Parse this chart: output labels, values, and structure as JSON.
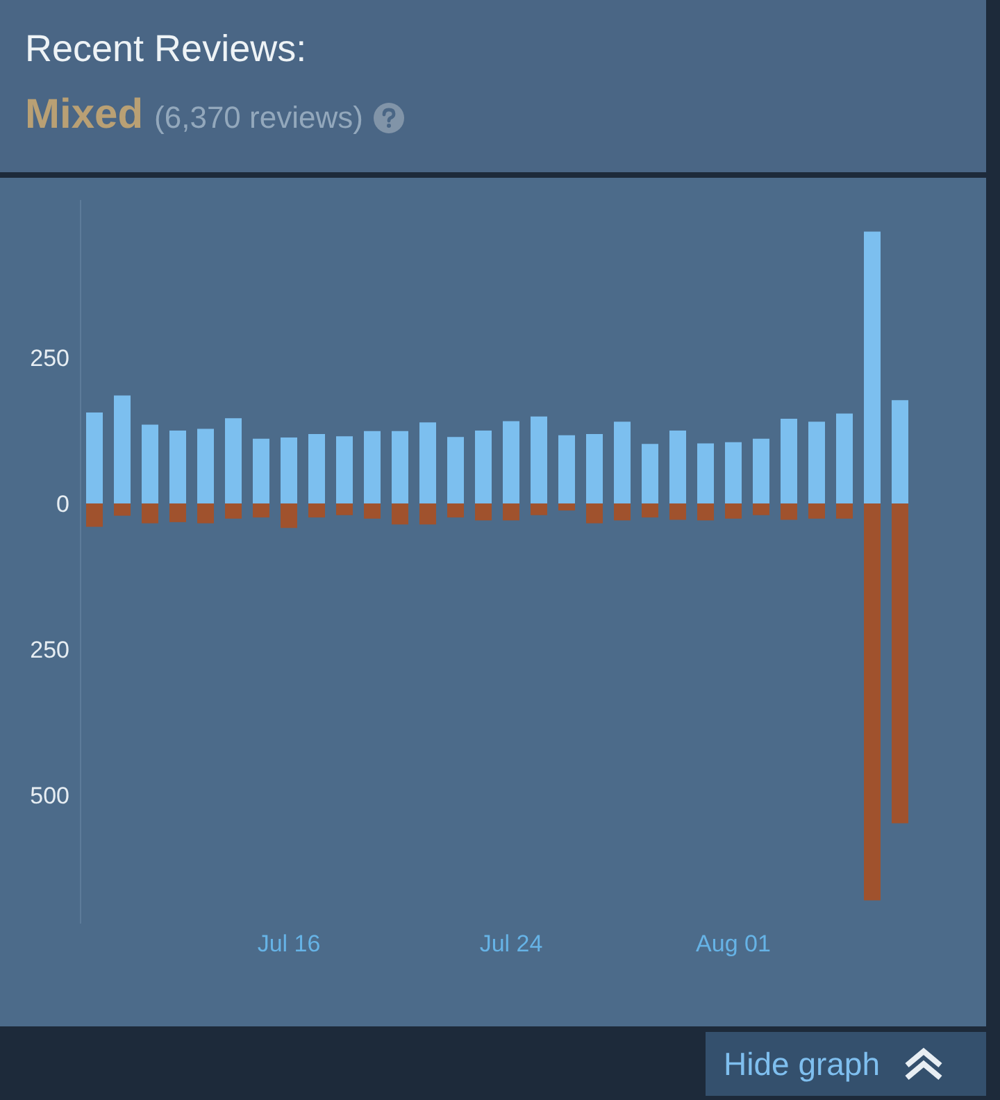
{
  "chart_data": {
    "type": "bar",
    "title": "Recent Reviews:",
    "subtitle": "Mixed",
    "annotations": [
      "(6,370 reviews)",
      "Hide graph"
    ],
    "categories": [
      null,
      null,
      null,
      null,
      null,
      null,
      null,
      "Jul 16",
      null,
      null,
      null,
      null,
      null,
      null,
      null,
      "Jul 24",
      null,
      null,
      null,
      null,
      null,
      null,
      null,
      "Aug 01",
      null,
      null,
      null,
      null,
      null,
      null
    ],
    "series": [
      {
        "color": "#7cbfef",
        "values": [
          156,
          185,
          135,
          125,
          128,
          146,
          111,
          113,
          119,
          115,
          124,
          124,
          139,
          114,
          125,
          141,
          149,
          117,
          119,
          140,
          102,
          125,
          103,
          105,
          111,
          145,
          140,
          154,
          466,
          177
        ]
      },
      {
        "color": "#a0522d",
        "values": [
          -40,
          -21,
          -34,
          -32,
          -34,
          -26,
          -24,
          -42,
          -24,
          -20,
          -26,
          -36,
          -36,
          -24,
          -29,
          -29,
          -20,
          -12,
          -34,
          -29,
          -24,
          -28,
          -29,
          -26,
          -20,
          -28,
          -26,
          -26,
          -680,
          -548
        ]
      }
    ],
    "stacked": true,
    "ylim": [
      -720,
      520
    ],
    "yticks": [
      {
        "value": -500,
        "label": "500"
      },
      {
        "value": -250,
        "label": "250"
      },
      0,
      250
    ]
  }
}
